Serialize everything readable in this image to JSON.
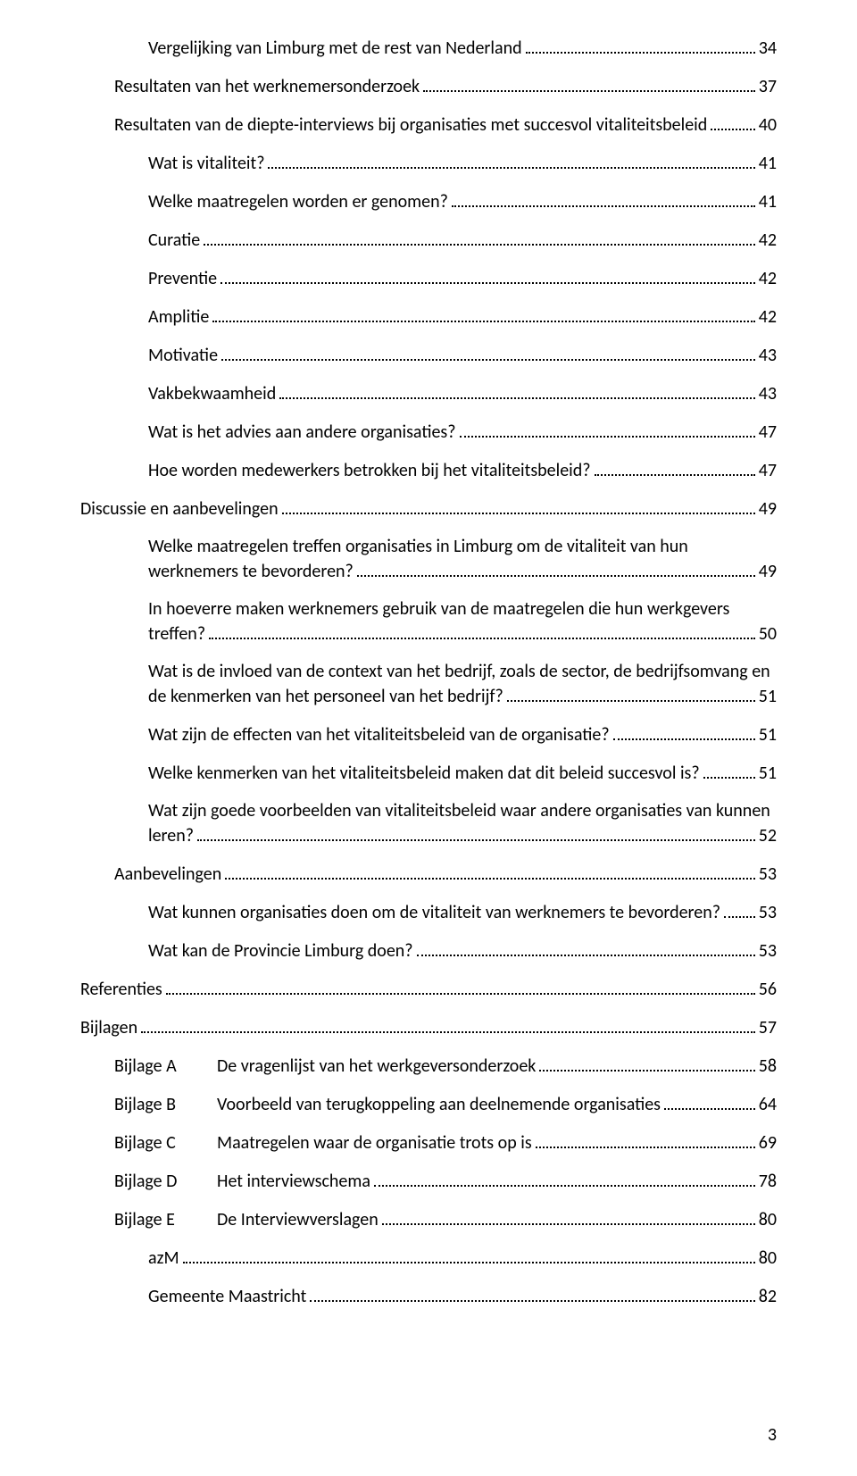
{
  "pageNumber": "3",
  "toc": [
    {
      "type": "line",
      "indent": 2,
      "title": "Vergelijking van Limburg met de rest van Nederland",
      "page": "34"
    },
    {
      "type": "line",
      "indent": 1,
      "title": "Resultaten van het werknemersonderzoek",
      "page": "37"
    },
    {
      "type": "line",
      "indent": 1,
      "title": "Resultaten van de diepte-interviews bij organisaties met succesvol vitaliteitsbeleid",
      "page": "40"
    },
    {
      "type": "line",
      "indent": 2,
      "title": "Wat is vitaliteit?",
      "page": "41"
    },
    {
      "type": "line",
      "indent": 2,
      "title": "Welke maatregelen worden er genomen?",
      "page": "41"
    },
    {
      "type": "line",
      "indent": 2,
      "title": "Curatie",
      "page": "42"
    },
    {
      "type": "line",
      "indent": 2,
      "title": "Preventie",
      "page": "42"
    },
    {
      "type": "line",
      "indent": 2,
      "title": "Amplitie",
      "page": "42"
    },
    {
      "type": "line",
      "indent": 2,
      "title": "Motivatie",
      "page": "43"
    },
    {
      "type": "line",
      "indent": 2,
      "title": "Vakbekwaamheid",
      "page": "43"
    },
    {
      "type": "line",
      "indent": 2,
      "title": "Wat is het advies aan andere organisaties?",
      "page": "47"
    },
    {
      "type": "line",
      "indent": 2,
      "title": "Hoe worden medewerkers betrokken bij het vitaliteitsbeleid?",
      "page": "47"
    },
    {
      "type": "line",
      "indent": 0,
      "title": "Discussie en aanbevelingen",
      "page": "49"
    },
    {
      "type": "wrap",
      "indent": 2,
      "line1": "Welke maatregelen treffen organisaties in Limburg om de vitaliteit van hun",
      "line2": "werknemers te bevorderen?",
      "page": "49"
    },
    {
      "type": "wrap",
      "indent": 2,
      "line1": "In hoeverre maken werknemers gebruik van de maatregelen die hun werkgevers",
      "line2": "treffen?",
      "page": "50"
    },
    {
      "type": "wrap",
      "indent": 2,
      "line1": "Wat is de invloed van de context van het bedrijf, zoals de sector, de bedrijfsomvang en",
      "line2": "de kenmerken van het personeel van het bedrijf?",
      "page": "51"
    },
    {
      "type": "line",
      "indent": 2,
      "title": "Wat zijn de effecten van het vitaliteitsbeleid van de organisatie?",
      "page": "51"
    },
    {
      "type": "line",
      "indent": 2,
      "title": "Welke kenmerken van het vitaliteitsbeleid maken dat dit beleid succesvol is?",
      "page": "51"
    },
    {
      "type": "wrap",
      "indent": 2,
      "line1": "Wat zijn goede voorbeelden van vitaliteitsbeleid waar andere organisaties van kunnen",
      "line2": "leren?",
      "page": "52"
    },
    {
      "type": "line",
      "indent": 1,
      "title": "Aanbevelingen",
      "page": "53"
    },
    {
      "type": "line",
      "indent": 2,
      "title": "Wat kunnen organisaties doen om de vitaliteit van werknemers te bevorderen?",
      "page": "53"
    },
    {
      "type": "line",
      "indent": 2,
      "title": "Wat kan de Provincie Limburg doen?",
      "page": "53"
    },
    {
      "type": "line",
      "indent": 0,
      "title": "Referenties",
      "page": "56"
    },
    {
      "type": "line",
      "indent": 0,
      "title": "Bijlagen",
      "page": "57"
    },
    {
      "type": "bijlage",
      "indent": 1,
      "label": "Bijlage A",
      "title": "De vragenlijst van het werkgeversonderzoek",
      "page": "58"
    },
    {
      "type": "bijlage",
      "indent": 1,
      "label": "Bijlage B",
      "title": "Voorbeeld van terugkoppeling aan deelnemende organisaties",
      "page": "64"
    },
    {
      "type": "bijlage",
      "indent": 1,
      "label": "Bijlage C",
      "title": "Maatregelen waar de organisatie trots op is",
      "page": "69"
    },
    {
      "type": "bijlage",
      "indent": 1,
      "label": "Bijlage D",
      "title": "Het interviewschema",
      "page": "78"
    },
    {
      "type": "bijlage",
      "indent": 1,
      "label": "Bijlage E",
      "title": "De Interviewverslagen",
      "page": "80"
    },
    {
      "type": "line",
      "indent": 2,
      "title": "azM",
      "page": "80"
    },
    {
      "type": "line",
      "indent": 2,
      "title": "Gemeente Maastricht",
      "page": "82"
    }
  ]
}
